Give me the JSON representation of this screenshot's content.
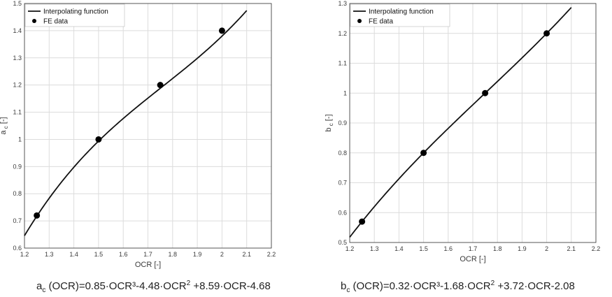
{
  "chart_data": [
    {
      "type": "line",
      "id": "a",
      "xlabel": "OCR [-]",
      "ylabel": "a",
      "ylabel_sub": "c",
      "ylabel_unit": "[-]",
      "xlim": [
        1.2,
        2.2
      ],
      "ylim": [
        0.6,
        1.5
      ],
      "xticks": [
        "1.2",
        "1.3",
        "1.4",
        "1.5",
        "1.6",
        "1.7",
        "1.8",
        "1.9",
        "2",
        "2.1",
        "2.2"
      ],
      "yticks": [
        "0.6",
        "0.7",
        "0.8",
        "0.9",
        "1",
        "1.1",
        "1.2",
        "1.3",
        "1.4",
        "1.5"
      ],
      "grid": true,
      "legend": {
        "placement": "top-left",
        "entries": [
          "Interpolating function",
          "FE data"
        ]
      },
      "series": [
        {
          "name": "Interpolating function",
          "kind": "curve",
          "coefficients": [
            0.85,
            -4.48,
            8.59,
            -4.68
          ],
          "x_range": [
            1.2,
            2.1
          ]
        },
        {
          "name": "FE data",
          "kind": "markers",
          "points": [
            {
              "x": 1.25,
              "y": 0.72
            },
            {
              "x": 1.5,
              "y": 1.0
            },
            {
              "x": 1.75,
              "y": 1.2
            },
            {
              "x": 2.0,
              "y": 1.4
            }
          ]
        }
      ],
      "formula": {
        "var": "a",
        "sub": "c",
        "part1": " (OCR)=0.85·OCR³-4.48·OCR",
        "sup": "2",
        "part2": " +8.59·OCR-4.68"
      }
    },
    {
      "type": "line",
      "id": "b",
      "xlabel": "OCR [-]",
      "ylabel": "b",
      "ylabel_sub": "c",
      "ylabel_unit": "[-]",
      "xlim": [
        1.2,
        2.2
      ],
      "ylim": [
        0.5,
        1.3
      ],
      "xticks": [
        "1.2",
        "1.3",
        "1.4",
        "1.5",
        "1.6",
        "1.7",
        "1.8",
        "1.9",
        "2",
        "2.1",
        "2.2"
      ],
      "yticks": [
        "0.5",
        "0.6",
        "0.7",
        "0.8",
        "0.9",
        "1",
        "1.1",
        "1.2",
        "1.3"
      ],
      "grid": true,
      "legend": {
        "placement": "top-left",
        "entries": [
          "Interpolating function",
          "FE data"
        ]
      },
      "series": [
        {
          "name": "Interpolating function",
          "kind": "curve",
          "coefficients": [
            0.32,
            -1.68,
            3.72,
            -2.08
          ],
          "x_range": [
            1.2,
            2.1
          ]
        },
        {
          "name": "FE data",
          "kind": "markers",
          "points": [
            {
              "x": 1.25,
              "y": 0.57
            },
            {
              "x": 1.5,
              "y": 0.8
            },
            {
              "x": 1.75,
              "y": 1.0
            },
            {
              "x": 2.0,
              "y": 1.2
            }
          ]
        }
      ],
      "formula": {
        "var": "b",
        "sub": "c",
        "part1": " (OCR)=0.32·OCR³-1.68·OCR",
        "sup": "2",
        "part2": " +3.72·OCR-2.08"
      }
    }
  ],
  "colors": {
    "curve": "#111111",
    "marker": "#000000",
    "grid": "#dcdcdc",
    "axis": "#333333"
  }
}
